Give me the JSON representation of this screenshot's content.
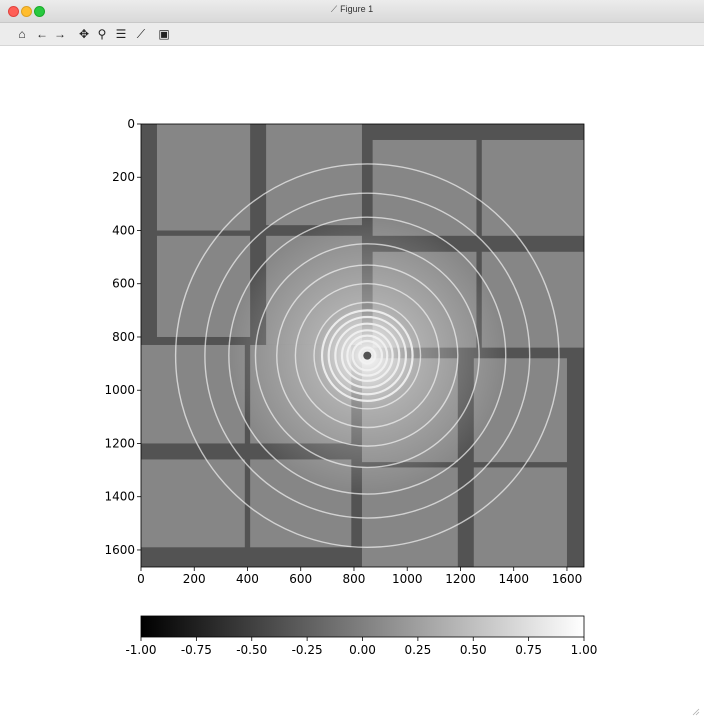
{
  "window": {
    "title": "Figure 1",
    "title_icon": "matplotlib-icon"
  },
  "toolbar": {
    "buttons": [
      {
        "name": "home-icon",
        "glyph": "⌂"
      },
      {
        "name": "back-arrow-icon",
        "glyph": "←"
      },
      {
        "name": "forward-arrow-icon",
        "glyph": "→"
      },
      {
        "name": "pan-icon",
        "glyph": "✥"
      },
      {
        "name": "zoom-icon",
        "glyph": "⚲"
      },
      {
        "name": "configure-subplots-icon",
        "glyph": "☰"
      },
      {
        "name": "edit-axes-icon",
        "glyph": "⟋"
      },
      {
        "name": "save-icon",
        "glyph": "▣"
      }
    ]
  },
  "chart_data": {
    "type": "heatmap",
    "colormap": "gray",
    "image_description_values": {
      "x_ticks": [
        0,
        200,
        400,
        600,
        800,
        1000,
        1200,
        1400,
        1600
      ],
      "y_ticks": [
        0,
        200,
        400,
        600,
        800,
        1000,
        1200,
        1400,
        1600
      ],
      "xlim": [
        0,
        1664
      ],
      "ylim": [
        1664,
        0
      ]
    },
    "colorbar": {
      "orientation": "horizontal",
      "range": [
        -1.0,
        1.0
      ],
      "ticks": [
        "-1.00",
        "-0.75",
        "-0.50",
        "-0.25",
        "0.00",
        "0.25",
        "0.50",
        "0.75",
        "1.00"
      ]
    },
    "beam_center": [
      850,
      870
    ],
    "ring_radii": [
      30,
      55,
      75,
      95,
      120,
      145,
      170,
      200,
      270,
      340,
      420,
      520,
      610,
      720
    ],
    "panel_value": 0.05,
    "gap_value": -0.35
  }
}
